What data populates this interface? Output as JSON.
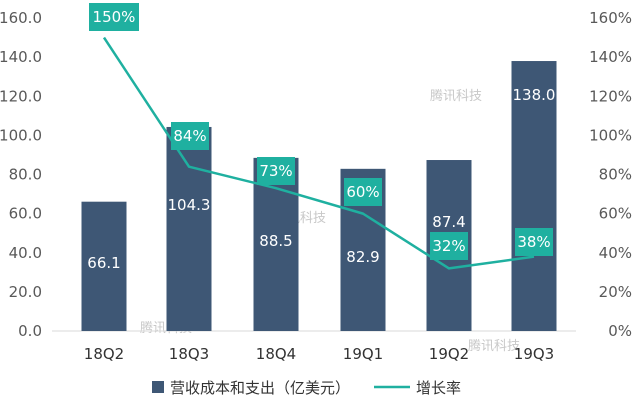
{
  "chart_data": {
    "type": "bar",
    "categories": [
      "18Q2",
      "18Q3",
      "18Q4",
      "19Q1",
      "19Q2",
      "19Q3"
    ],
    "series": [
      {
        "name": "营收成本和支出（亿美元）",
        "kind": "bar",
        "axis": "left",
        "values": [
          66.1,
          104.3,
          88.5,
          82.9,
          87.4,
          138.0
        ],
        "labels": [
          "66.1",
          "104.3",
          "88.5",
          "82.9",
          "87.4",
          "138.0"
        ],
        "color": "#3e5775"
      },
      {
        "name": "增长率",
        "kind": "line",
        "axis": "right",
        "values": [
          150,
          84,
          73,
          60,
          32,
          38
        ],
        "labels": [
          "150%",
          "84%",
          "73%",
          "60%",
          "32%",
          "38%"
        ],
        "color": "#1fb0a0"
      }
    ],
    "y_left": {
      "min": 0,
      "max": 160,
      "ticks": [
        "0.0",
        "20.0",
        "40.0",
        "60.0",
        "80.0",
        "100.0",
        "120.0",
        "140.0",
        "160.0"
      ]
    },
    "y_right": {
      "min": 0,
      "max": 160,
      "ticks": [
        "0%",
        "20%",
        "40%",
        "60%",
        "80%",
        "100%",
        "120%",
        "140%",
        "160%"
      ]
    },
    "legend": [
      "营收成本和支出（亿美元）",
      "增长率"
    ],
    "legend_position": "bottom",
    "watermark": "腾讯科技",
    "grid": false
  }
}
